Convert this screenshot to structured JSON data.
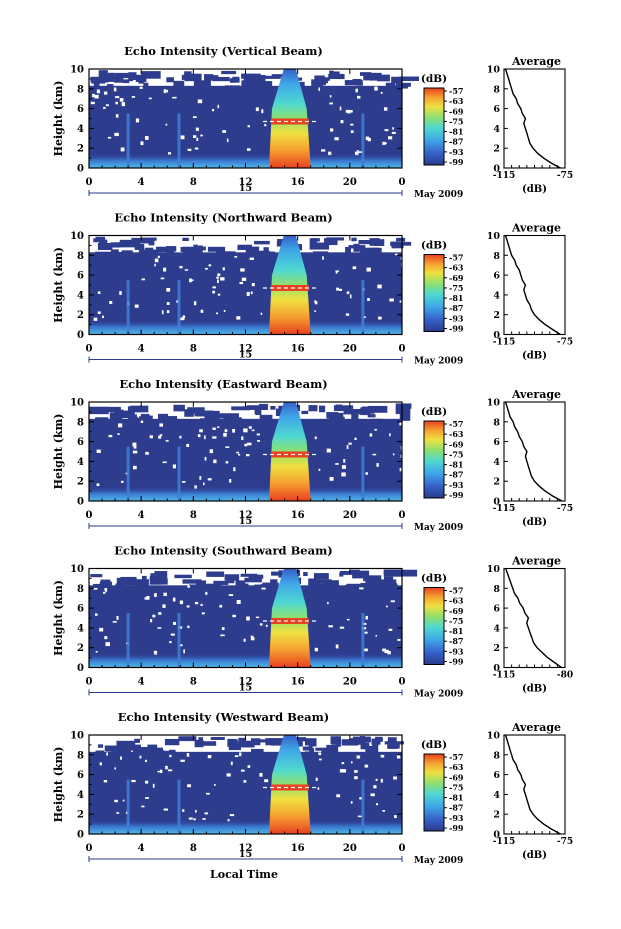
{
  "figure": {
    "xlabel": "Local Time",
    "date_label": "May 2009",
    "day_label": "15",
    "hour_ticks": [
      "0",
      "4",
      "8",
      "12",
      "16",
      "20",
      "0"
    ],
    "height_ticks": [
      "0",
      "2",
      "4",
      "6",
      "8",
      "10"
    ],
    "ylabel": "Height (km)",
    "colorbar_unit": "(dB)",
    "colorbar_ticks": [
      "-57",
      "-63",
      "-69",
      "-75",
      "-81",
      "-87",
      "-93",
      "-99"
    ],
    "average_title": "Average",
    "average_xlabel": "(dB)"
  },
  "chart_data": [
    {
      "type": "heatmap",
      "title": "Echo Intensity (Vertical Beam)",
      "x": "Local Time (hours, 15 May 2009)",
      "xlim": [
        0,
        24
      ],
      "ylim": [
        0,
        10
      ],
      "zlim": [
        -99,
        -57
      ],
      "colorscale": [
        "#2a3a8c",
        "#3560c8",
        "#3fa6e8",
        "#4fd8d0",
        "#8ee070",
        "#f0e040",
        "#f5a030",
        "#e84020"
      ],
      "features": {
        "convective_event_hours": [
          13.8,
          17.0
        ],
        "melting_layer_km": 4.7,
        "low_level_enhancement_km": [
          0,
          1.5
        ]
      },
      "average_profile": {
        "xticks": [
          "-115",
          "-75"
        ],
        "xlim": [
          -115,
          -75
        ],
        "height_km": [
          0,
          0.5,
          1,
          1.5,
          2,
          2.5,
          3,
          3.5,
          4,
          4.5,
          5,
          5.5,
          6,
          6.5,
          7,
          7.5,
          8,
          8.5,
          9,
          9.5,
          10
        ],
        "db": [
          -78,
          -84,
          -89,
          -93,
          -96,
          -98,
          -99,
          -100,
          -101,
          -102,
          -101,
          -103,
          -104,
          -106,
          -107,
          -109,
          -110,
          -111,
          -112,
          -113,
          -114
        ]
      }
    },
    {
      "type": "heatmap",
      "title": "Echo Intensity (Northward Beam)",
      "xlim": [
        0,
        24
      ],
      "ylim": [
        0,
        10
      ],
      "zlim": [
        -99,
        -57
      ],
      "features": {
        "convective_event_hours": [
          13.8,
          17.0
        ],
        "melting_layer_km": 4.7
      },
      "average_profile": {
        "xticks": [
          "-115",
          "-75"
        ],
        "xlim": [
          -115,
          -75
        ],
        "height_km": [
          0,
          0.5,
          1,
          1.5,
          2,
          2.5,
          3,
          3.5,
          4,
          4.5,
          5,
          5.5,
          6,
          6.5,
          7,
          7.5,
          8,
          8.5,
          9,
          9.5,
          10
        ],
        "db": [
          -78,
          -83,
          -88,
          -92,
          -95,
          -97,
          -98,
          -100,
          -101,
          -102,
          -101,
          -103,
          -104,
          -105,
          -107,
          -108,
          -110,
          -111,
          -112,
          -113,
          -114
        ]
      }
    },
    {
      "type": "heatmap",
      "title": "Echo Intensity (Eastward Beam)",
      "xlim": [
        0,
        24
      ],
      "ylim": [
        0,
        10
      ],
      "zlim": [
        -99,
        -57
      ],
      "features": {
        "convective_event_hours": [
          13.8,
          17.0
        ],
        "melting_layer_km": 4.7
      },
      "average_profile": {
        "xticks": [
          "-115",
          "-75"
        ],
        "xlim": [
          -115,
          -75
        ],
        "height_km": [
          0,
          0.5,
          1,
          1.5,
          2,
          2.5,
          3,
          3.5,
          4,
          4.5,
          5,
          5.5,
          6,
          6.5,
          7,
          7.5,
          8,
          8.5,
          9,
          9.5,
          10
        ],
        "db": [
          -77,
          -83,
          -88,
          -92,
          -95,
          -97,
          -98,
          -99,
          -100,
          -101,
          -100,
          -102,
          -103,
          -105,
          -106,
          -108,
          -109,
          -111,
          -112,
          -113,
          -114
        ]
      }
    },
    {
      "type": "heatmap",
      "title": "Echo Intensity (Southward Beam)",
      "xlim": [
        0,
        24
      ],
      "ylim": [
        0,
        10
      ],
      "zlim": [
        -99,
        -57
      ],
      "features": {
        "convective_event_hours": [
          13.8,
          17.0
        ],
        "melting_layer_km": 4.7
      },
      "average_profile": {
        "xticks": [
          "-115",
          "-80"
        ],
        "xlim": [
          -115,
          -80
        ],
        "height_km": [
          0,
          0.5,
          1,
          1.5,
          2,
          2.5,
          3,
          3.5,
          4,
          4.5,
          5,
          5.5,
          6,
          6.5,
          7,
          7.5,
          8,
          8.5,
          9,
          9.5,
          10
        ],
        "db": [
          -82,
          -86,
          -90,
          -93,
          -96,
          -98,
          -99,
          -100,
          -101,
          -102,
          -101,
          -103,
          -104,
          -106,
          -107,
          -109,
          -110,
          -111,
          -112,
          -113,
          -114
        ]
      }
    },
    {
      "type": "heatmap",
      "title": "Echo Intensity (Westward Beam)",
      "xlim": [
        0,
        24
      ],
      "ylim": [
        0,
        10
      ],
      "zlim": [
        -99,
        -57
      ],
      "features": {
        "convective_event_hours": [
          13.8,
          17.0
        ],
        "melting_layer_km": 4.7
      },
      "average_profile": {
        "xticks": [
          "-115",
          "-75"
        ],
        "xlim": [
          -115,
          -75
        ],
        "height_km": [
          0,
          0.5,
          1,
          1.5,
          2,
          2.5,
          3,
          3.5,
          4,
          4.5,
          5,
          5.5,
          6,
          6.5,
          7,
          7.5,
          8,
          8.5,
          9,
          9.5,
          10
        ],
        "db": [
          -78,
          -84,
          -89,
          -93,
          -96,
          -98,
          -99,
          -100,
          -101,
          -102,
          -101,
          -103,
          -104,
          -106,
          -107,
          -109,
          -110,
          -111,
          -112,
          -113,
          -114
        ]
      }
    }
  ]
}
